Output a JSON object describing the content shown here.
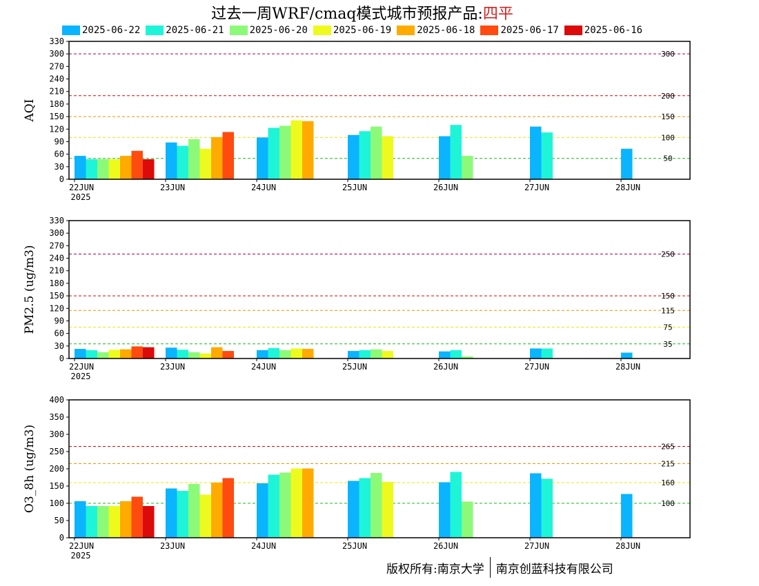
{
  "title": {
    "prefix": "过去一周WRF/cmaq模式城市预报产品:",
    "city": "四平"
  },
  "colors": {
    "2025-06-22": "#0ab4ff",
    "2025-06-21": "#1ef5d8",
    "2025-06-20": "#8cfa78",
    "2025-06-19": "#eefa1e",
    "2025-06-18": "#ffaa00",
    "2025-06-17": "#ff4a10",
    "2025-06-16": "#dc0a0a"
  },
  "legend": [
    "2025-06-22",
    "2025-06-21",
    "2025-06-20",
    "2025-06-19",
    "2025-06-18",
    "2025-06-17",
    "2025-06-16"
  ],
  "footer": {
    "left": "版权所有:南京大学",
    "right": "南京创蓝科技有限公司"
  },
  "chart_data": [
    {
      "type": "bar",
      "ylabel": "AQI",
      "ylim": [
        0,
        330
      ],
      "yticks": [
        0,
        30,
        60,
        90,
        120,
        150,
        180,
        210,
        240,
        270,
        300,
        330
      ],
      "categories": [
        "22JUN",
        "23JUN",
        "24JUN",
        "25JUN",
        "26JUN",
        "27JUN",
        "28JUN"
      ],
      "year_label": "2025",
      "thresholds": [
        {
          "value": 50,
          "label": "50",
          "color": "#11bb11"
        },
        {
          "value": 100,
          "label": "100",
          "color": "#e8e800"
        },
        {
          "value": 150,
          "label": "150",
          "color": "#f09000"
        },
        {
          "value": 200,
          "label": "200",
          "color": "#e00000"
        },
        {
          "value": 300,
          "label": "300",
          "color": "#a00050"
        }
      ],
      "series": [
        {
          "name": "2025-06-22",
          "values": [
            56,
            88,
            100,
            106,
            103,
            126,
            73
          ]
        },
        {
          "name": "2025-06-21",
          "values": [
            48,
            80,
            123,
            115,
            130,
            112,
            null
          ]
        },
        {
          "name": "2025-06-20",
          "values": [
            48,
            96,
            128,
            126,
            56,
            null,
            null
          ]
        },
        {
          "name": "2025-06-19",
          "values": [
            48,
            73,
            141,
            103,
            null,
            null,
            null
          ]
        },
        {
          "name": "2025-06-18",
          "values": [
            56,
            101,
            139,
            null,
            null,
            null,
            null
          ]
        },
        {
          "name": "2025-06-17",
          "values": [
            68,
            113,
            null,
            null,
            null,
            null,
            null
          ]
        },
        {
          "name": "2025-06-16",
          "values": [
            48,
            null,
            null,
            null,
            null,
            null,
            null
          ]
        }
      ]
    },
    {
      "type": "bar",
      "ylabel": "PM2.5 (ug/m3)",
      "ylim": [
        0,
        330
      ],
      "yticks": [
        0,
        30,
        60,
        90,
        120,
        150,
        180,
        210,
        240,
        270,
        300,
        330
      ],
      "categories": [
        "22JUN",
        "23JUN",
        "24JUN",
        "25JUN",
        "26JUN",
        "27JUN",
        "28JUN"
      ],
      "year_label": "2025",
      "thresholds": [
        {
          "value": 35,
          "label": "35",
          "color": "#11bb11"
        },
        {
          "value": 75,
          "label": "75",
          "color": "#e8e800"
        },
        {
          "value": 115,
          "label": "115",
          "color": "#f09000"
        },
        {
          "value": 150,
          "label": "150",
          "color": "#e00000"
        },
        {
          "value": 250,
          "label": "250",
          "color": "#a00050"
        }
      ],
      "series": [
        {
          "name": "2025-06-22",
          "values": [
            23,
            26,
            20,
            18,
            17,
            24,
            14
          ]
        },
        {
          "name": "2025-06-21",
          "values": [
            20,
            21,
            25,
            20,
            20,
            24,
            null
          ]
        },
        {
          "name": "2025-06-20",
          "values": [
            15,
            15,
            20,
            22,
            5,
            null,
            null
          ]
        },
        {
          "name": "2025-06-19",
          "values": [
            21,
            12,
            24,
            18,
            null,
            null,
            null
          ]
        },
        {
          "name": "2025-06-18",
          "values": [
            22,
            27,
            23,
            null,
            null,
            null,
            null
          ]
        },
        {
          "name": "2025-06-17",
          "values": [
            29,
            18,
            null,
            null,
            null,
            null,
            null
          ]
        },
        {
          "name": "2025-06-16",
          "values": [
            27,
            null,
            null,
            null,
            null,
            null,
            null
          ]
        }
      ]
    },
    {
      "type": "bar",
      "ylabel": "O3_8h (ug/m3)",
      "ylim": [
        0,
        400
      ],
      "yticks": [
        0,
        50,
        100,
        150,
        200,
        250,
        300,
        350,
        400
      ],
      "categories": [
        "22JUN",
        "23JUN",
        "24JUN",
        "25JUN",
        "26JUN",
        "27JUN",
        "28JUN"
      ],
      "year_label": "2025",
      "thresholds": [
        {
          "value": 100,
          "label": "100",
          "color": "#11bb11"
        },
        {
          "value": 160,
          "label": "160",
          "color": "#e8e800"
        },
        {
          "value": 215,
          "label": "215",
          "color": "#f09000"
        },
        {
          "value": 265,
          "label": "265",
          "color": "#e00000"
        }
      ],
      "series": [
        {
          "name": "2025-06-22",
          "values": [
            106,
            143,
            158,
            165,
            161,
            187,
            127
          ]
        },
        {
          "name": "2025-06-21",
          "values": [
            92,
            136,
            183,
            173,
            191,
            171,
            null
          ]
        },
        {
          "name": "2025-06-20",
          "values": [
            92,
            156,
            189,
            188,
            105,
            null,
            null
          ]
        },
        {
          "name": "2025-06-19",
          "values": [
            92,
            125,
            201,
            162,
            null,
            null,
            null
          ]
        },
        {
          "name": "2025-06-18",
          "values": [
            106,
            160,
            201,
            null,
            null,
            null,
            null
          ]
        },
        {
          "name": "2025-06-17",
          "values": [
            119,
            173,
            null,
            null,
            null,
            null,
            null
          ]
        },
        {
          "name": "2025-06-16",
          "values": [
            92,
            null,
            null,
            null,
            null,
            null,
            null
          ]
        }
      ]
    }
  ]
}
